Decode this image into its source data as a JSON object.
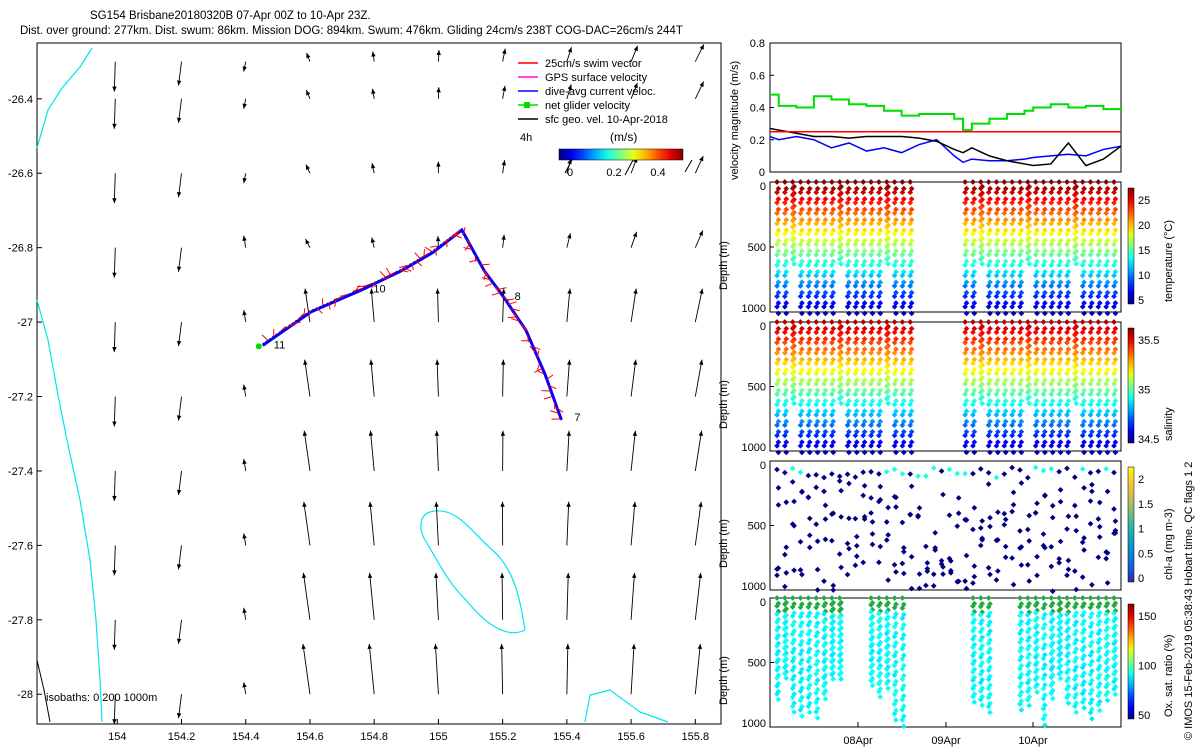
{
  "title_line1": "SG154 Brisbane20180320B 07-Apr 00Z to 10-Apr 23Z.",
  "title_line2": "Dist. over ground: 277km. Dist. swum: 86km. Mission DOG: 894km. Swum: 476km. Gliding 24cm/s 238T COG-DAC=26cm/s 244T",
  "side_label": "© IMOS 15-Feb-2019 05:38:43 Hobart time. QC flags 1  2",
  "map": {
    "legend": [
      {
        "label": "25cm/s swim vector",
        "color": "#ff0000"
      },
      {
        "label": "GPS surface velocity",
        "color": "#ff00ff"
      },
      {
        "label": "dive-avg current veloc.",
        "color": "#0000ff"
      },
      {
        "label": "net glider velocity",
        "color": "#00dd00"
      },
      {
        "label": "sfc geo. vel. 10-Apr-2018",
        "color": "#000000"
      }
    ],
    "scale_label": "4h",
    "colorbar_title": "(m/s)",
    "colorbar_ticks": [
      "0",
      "0.2",
      "0.4"
    ],
    "isobaths_label": "isobaths: 0   200  1000m",
    "day_labels": [
      "7",
      "8",
      "10",
      "11"
    ]
  },
  "chart_data": [
    {
      "type": "map",
      "title": "glider track and surface geostrophic velocity",
      "xlim": [
        153.75,
        155.88
      ],
      "ylim": [
        -28.08,
        -26.25
      ],
      "x_ticks": [
        "154",
        "154.2",
        "154.4",
        "154.6",
        "154.8",
        "155",
        "155.2",
        "155.4",
        "155.6",
        "155.8"
      ],
      "y_ticks": [
        "-26.4",
        "-26.6",
        "-26.8",
        "-27",
        "-27.2",
        "-27.4",
        "-27.6",
        "-27.8",
        "-28"
      ],
      "track": [
        {
          "lon": 155.38,
          "lat": -27.26,
          "day": "7"
        },
        {
          "lon": 155.33,
          "lat": -27.14
        },
        {
          "lon": 155.27,
          "lat": -27.02
        },
        {
          "lon": 155.2,
          "lat": -26.93,
          "day": "8"
        },
        {
          "lon": 155.14,
          "lat": -26.86
        },
        {
          "lon": 155.07,
          "lat": -26.75
        },
        {
          "lon": 154.98,
          "lat": -26.81
        },
        {
          "lon": 154.88,
          "lat": -26.86
        },
        {
          "lon": 154.76,
          "lat": -26.91,
          "day": "10"
        },
        {
          "lon": 154.6,
          "lat": -26.97
        },
        {
          "lon": 154.45,
          "lat": -27.06,
          "day": "11"
        }
      ]
    },
    {
      "type": "line",
      "ylabel": "velocity magnitude (m/s)",
      "ylim": [
        0,
        0.8
      ],
      "y_ticks": [
        "0",
        "0.2",
        "0.4",
        "0.6",
        "0.8"
      ],
      "x": [
        7.0,
        7.1,
        7.3,
        7.5,
        7.7,
        7.9,
        8.1,
        8.3,
        8.5,
        8.7,
        8.9,
        9.1,
        9.2,
        9.3,
        9.5,
        9.7,
        9.9,
        10.0,
        10.2,
        10.4,
        10.6,
        10.8,
        11.0
      ],
      "series": [
        {
          "name": "net glider velocity",
          "color": "#00dd00",
          "values": [
            0.48,
            0.41,
            0.4,
            0.47,
            0.45,
            0.42,
            0.41,
            0.38,
            0.35,
            0.36,
            0.36,
            0.33,
            0.26,
            0.3,
            0.33,
            0.36,
            0.38,
            0.4,
            0.42,
            0.4,
            0.41,
            0.39,
            0.4
          ]
        },
        {
          "name": "dive-avg current veloc.",
          "color": "#0000ff",
          "values": [
            0.22,
            0.2,
            0.22,
            0.2,
            0.15,
            0.18,
            0.13,
            0.15,
            0.12,
            0.17,
            0.2,
            0.1,
            0.06,
            0.08,
            0.07,
            0.07,
            0.08,
            0.09,
            0.1,
            0.11,
            0.1,
            0.14,
            0.16
          ]
        },
        {
          "name": "sfc geo. vel.",
          "color": "#000000",
          "values": [
            0.27,
            0.26,
            0.24,
            0.22,
            0.22,
            0.21,
            0.22,
            0.22,
            0.22,
            0.21,
            0.19,
            0.14,
            0.12,
            0.15,
            0.1,
            0.07,
            0.05,
            0.04,
            0.05,
            0.18,
            0.04,
            0.08,
            0.16
          ]
        },
        {
          "name": "25cm/s swim vector",
          "color": "#ff0000",
          "values": [
            0.25,
            0.25,
            0.25,
            0.25,
            0.25,
            0.25,
            0.25,
            0.25,
            0.25,
            0.25,
            0.25,
            0.25,
            0.25,
            0.25,
            0.25,
            0.25,
            0.25,
            0.25,
            0.25,
            0.25,
            0.25,
            0.25,
            0.25
          ]
        }
      ]
    },
    {
      "type": "scatter",
      "ylabel": "Depth (m)",
      "ylim": [
        1000,
        0
      ],
      "y_ticks": [
        "0",
        "500",
        "1000"
      ],
      "x_ticks": [
        "08Apr",
        "09Apr",
        "10Apr"
      ],
      "panels": [
        {
          "name": "temperature",
          "clabel": "temperature (°C)",
          "cticks": [
            "5",
            "10",
            "15",
            "20",
            "25"
          ]
        },
        {
          "name": "salinity",
          "clabel": "salinity",
          "cticks": [
            "34.5",
            "35",
            "35.5"
          ]
        },
        {
          "name": "chl-a",
          "clabel": "chl-a (mg m-3)",
          "cticks": [
            "0",
            "0.5",
            "1",
            "1.5",
            "2"
          ]
        },
        {
          "name": "oxygen",
          "clabel": "Ox. sat. ratio (%)",
          "cticks": [
            "50",
            "100",
            "150"
          ]
        }
      ]
    }
  ]
}
